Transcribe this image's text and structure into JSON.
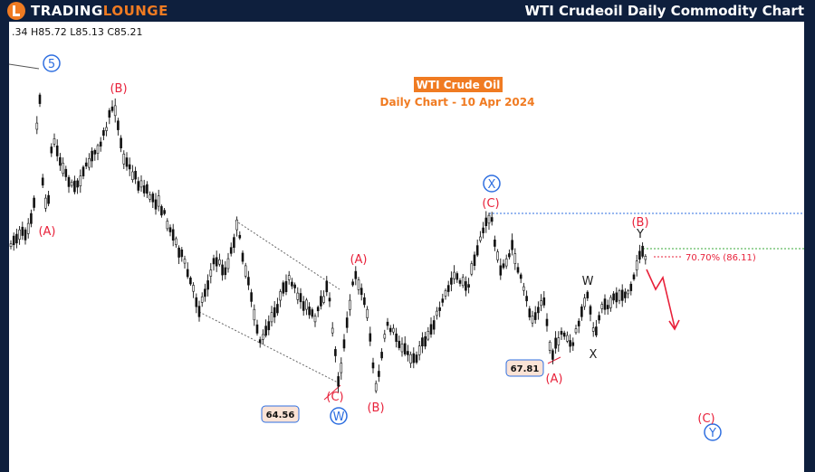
{
  "header": {
    "logo_word1": "TRADING",
    "logo_word2": "LOUNGE",
    "title": "WTI Crudeoil Daily Commodity Chart"
  },
  "colors": {
    "background": "#0e1f3d",
    "accent": "#f07b22",
    "red_label": "#e8213a",
    "blue_label": "#2f6fe0"
  },
  "chart_data": {
    "type": "candlestick",
    "ohlc_readout": ".34 H85.72 L85.13 C85.21",
    "title": "WTI Crude Oil",
    "subtitle": "Daily Chart - 10 Apr 2024",
    "price_boxes": [
      "64.56",
      "67.81"
    ],
    "fib_label": "70.70% (86.11)",
    "wave_labels": {
      "blue_circled": [
        "5",
        "X",
        "W",
        "Y"
      ],
      "red": [
        "(B)",
        "(A)",
        "(C)",
        "(A)",
        "(B)",
        "(C)",
        "(A)",
        "(B)",
        "(C)"
      ],
      "black": [
        "W",
        "X",
        "Y"
      ]
    }
  }
}
